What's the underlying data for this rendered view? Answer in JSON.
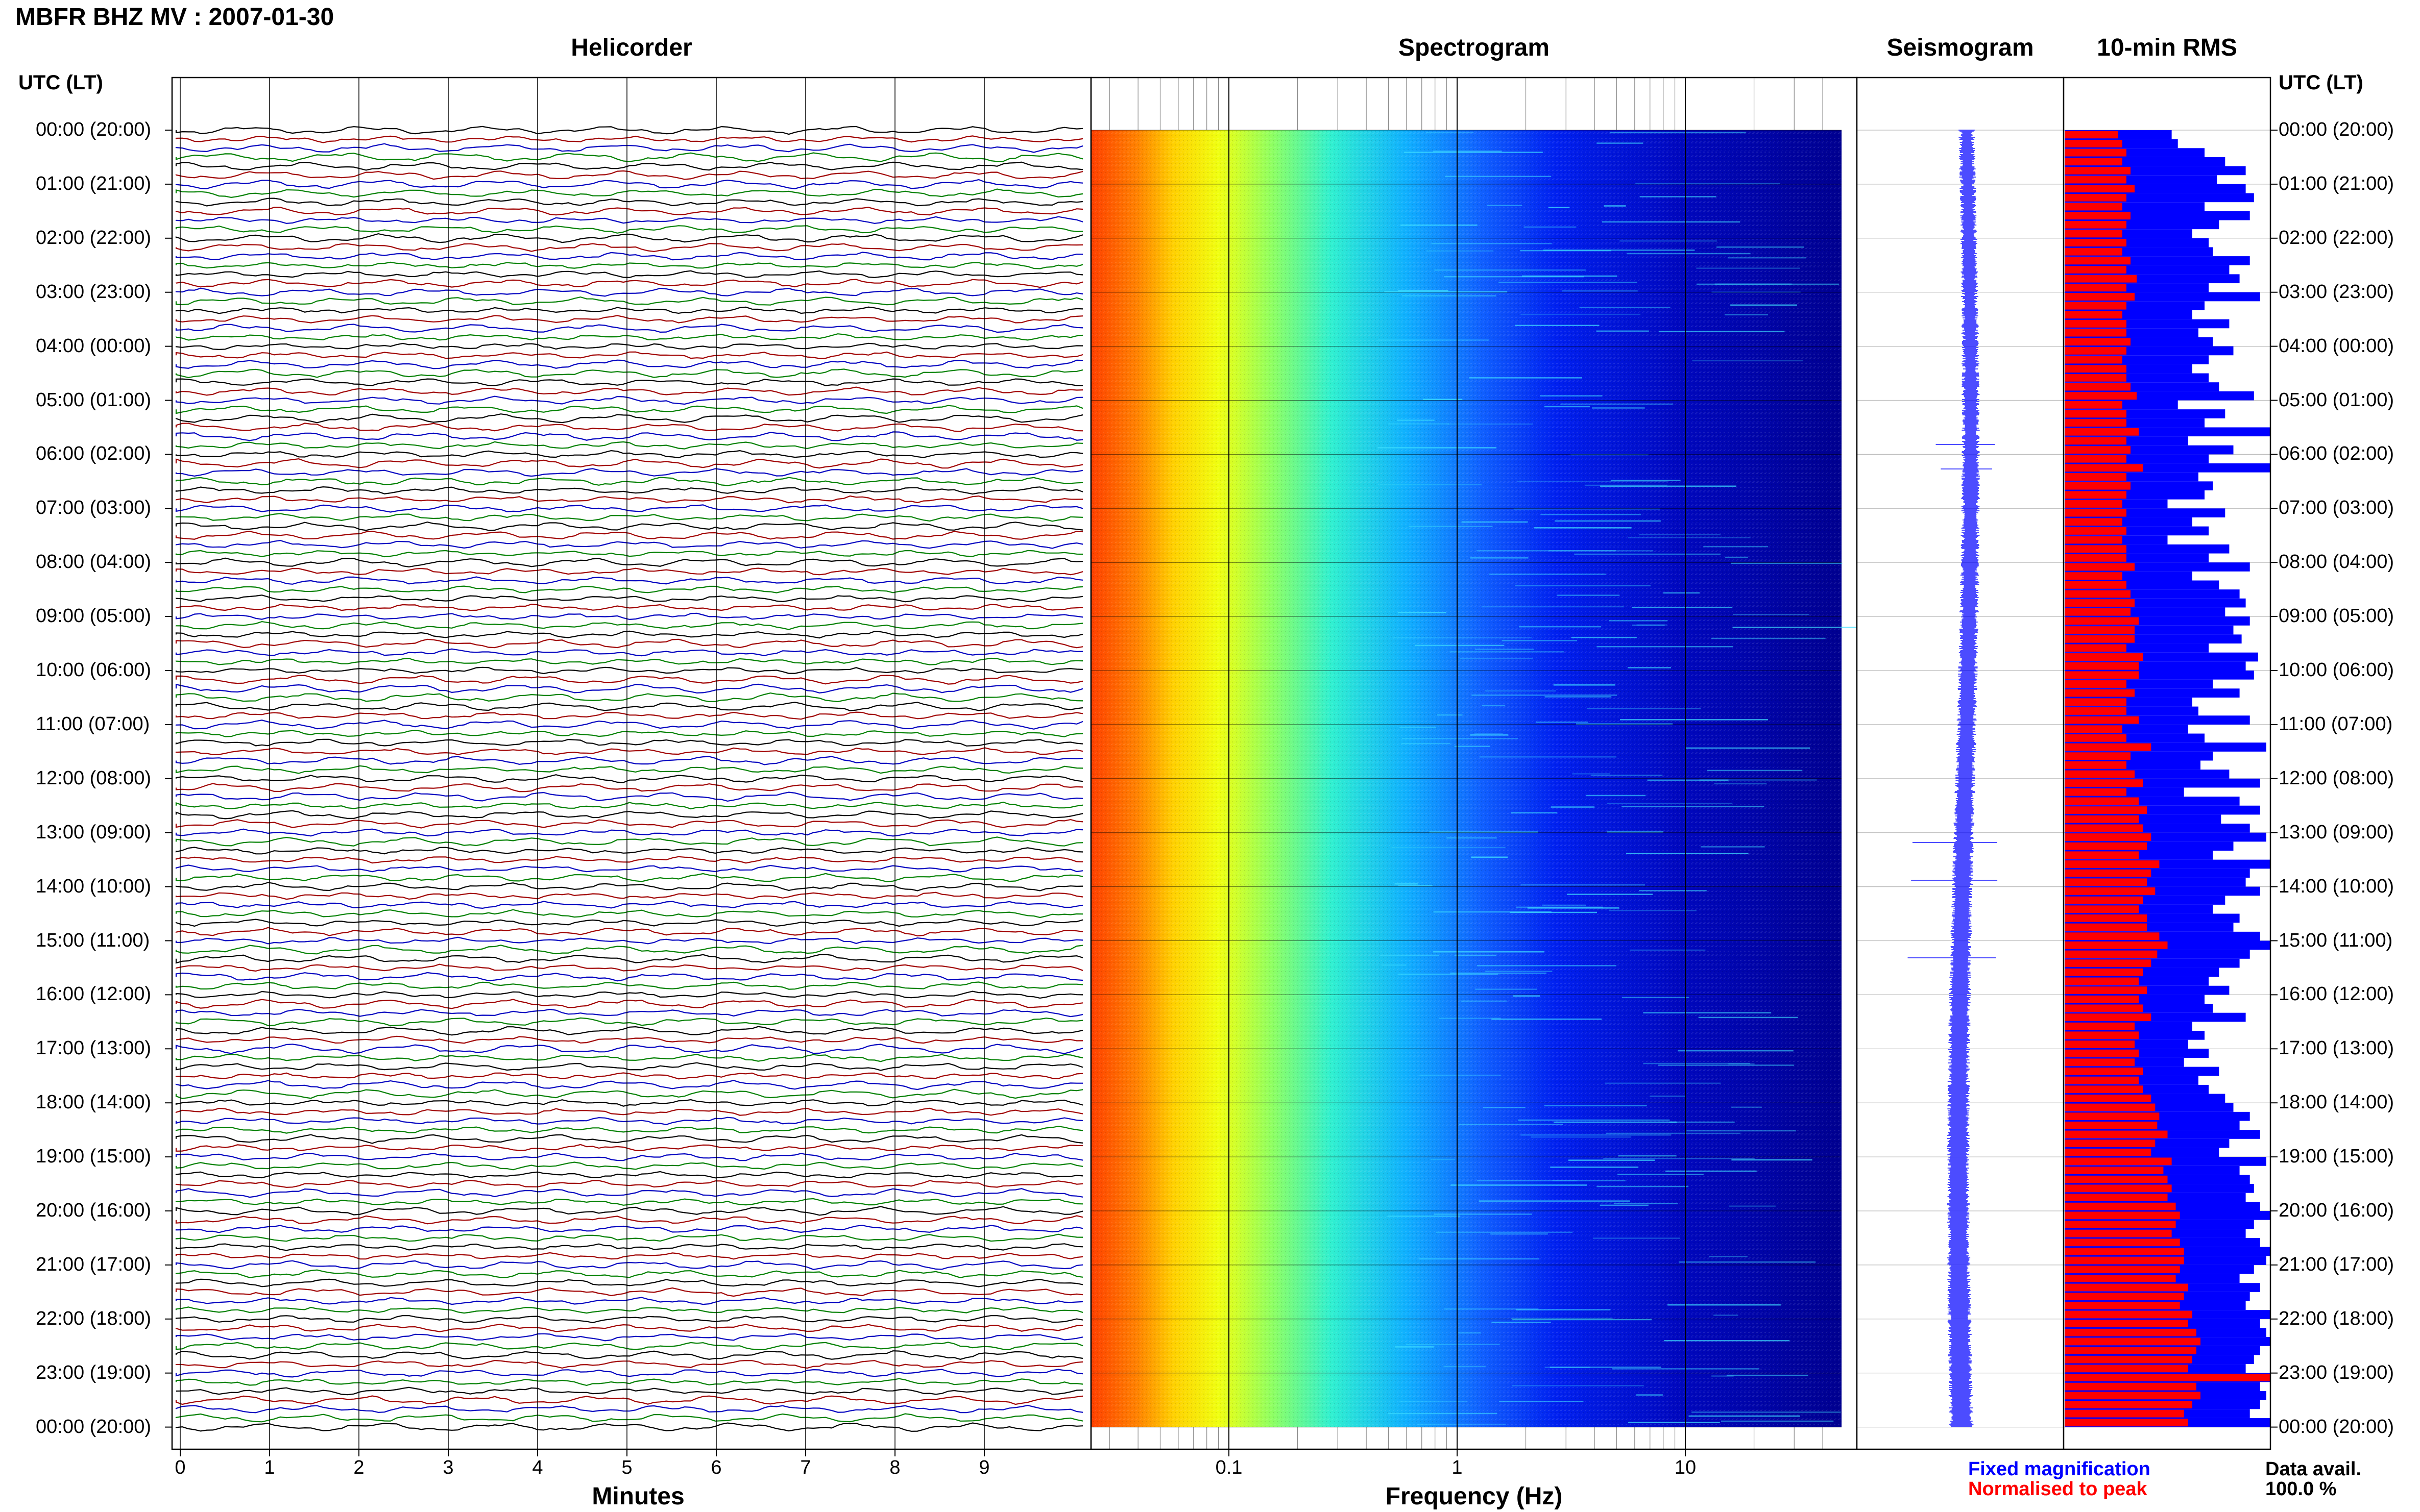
{
  "title": "MBFR BHZ MV : 2007-01-30",
  "panels": {
    "helicorder": "Helicorder",
    "spectrogram": "Spectrogram",
    "seismogram": "Seismogram",
    "rms": "10-min RMS"
  },
  "time_axis": {
    "header": "UTC (LT)",
    "labels": [
      "00:00 (20:00)",
      "01:00 (21:00)",
      "02:00 (22:00)",
      "03:00 (23:00)",
      "04:00 (00:00)",
      "05:00 (01:00)",
      "06:00 (02:00)",
      "07:00 (03:00)",
      "08:00 (04:00)",
      "09:00 (05:00)",
      "10:00 (06:00)",
      "11:00 (07:00)",
      "12:00 (08:00)",
      "13:00 (09:00)",
      "14:00 (10:00)",
      "15:00 (11:00)",
      "16:00 (12:00)",
      "17:00 (13:00)",
      "18:00 (14:00)",
      "19:00 (15:00)",
      "20:00 (16:00)",
      "21:00 (17:00)",
      "22:00 (18:00)",
      "23:00 (19:00)",
      "00:00 (20:00)"
    ]
  },
  "helicorder_axis": {
    "xlabel": "Minutes",
    "ticks": [
      "0",
      "1",
      "2",
      "3",
      "4",
      "5",
      "6",
      "7",
      "8",
      "9"
    ],
    "trace_colors": [
      "#000000",
      "#a00000",
      "#0000c0",
      "#008000"
    ]
  },
  "spectrogram_axis": {
    "xlabel": "Frequency (Hz)",
    "ticks": [
      "0.1",
      "1",
      "10"
    ],
    "scale": "log"
  },
  "rms_legend": {
    "fixed": "Fixed magnification",
    "fixed_color": "#0000ff",
    "normalised": "Normalised to peak",
    "normalised_color": "#ff0000"
  },
  "data_avail": {
    "label": "Data avail.",
    "value": "100.0 %"
  },
  "chart_data": {
    "type": "heatmap",
    "rms_10min": {
      "series": [
        {
          "name": "Fixed magnification",
          "values": [
            0.52,
            0.55,
            0.68,
            0.78,
            0.88,
            0.74,
            0.88,
            0.92,
            0.68,
            0.9,
            0.75,
            0.62,
            0.7,
            0.72,
            0.9,
            0.8,
            0.85,
            0.7,
            0.95,
            0.68,
            0.62,
            0.8,
            0.65,
            0.72,
            0.82,
            0.7,
            0.62,
            0.7,
            0.75,
            0.92,
            0.55,
            0.78,
            0.68,
            1.0,
            0.6,
            0.82,
            0.7,
            1.0,
            0.65,
            0.72,
            0.68,
            0.5,
            0.78,
            0.62,
            0.7,
            0.5,
            0.8,
            0.7,
            0.9,
            0.62,
            0.75,
            0.85,
            0.88,
            0.78,
            0.9,
            0.82,
            0.86,
            0.7,
            0.94,
            0.88,
            0.92,
            0.72,
            0.85,
            0.62,
            0.65,
            0.9,
            0.6,
            0.68,
            0.98,
            0.72,
            0.66,
            0.8,
            0.95,
            0.58,
            0.85,
            0.95,
            0.76,
            0.9,
            0.98,
            0.82,
            0.72,
            1.0,
            0.9,
            0.88,
            0.95,
            0.78,
            0.72,
            0.85,
            0.82,
            0.95,
            1.0,
            0.9,
            0.85,
            0.75,
            0.7,
            0.8,
            0.68,
            0.72,
            0.88,
            0.62,
            0.68,
            0.6,
            0.7,
            0.58,
            0.75,
            0.65,
            0.7,
            0.78,
            0.82,
            0.9,
            0.85,
            0.95,
            0.8,
            0.75,
            0.98,
            0.85,
            0.9,
            0.92,
            0.88,
            0.95,
            1.0,
            0.92,
            0.88,
            0.95,
            1.0,
            0.98,
            0.92,
            0.85,
            0.95,
            0.9,
            0.88,
            1.0,
            0.95,
            0.98,
            1.0,
            0.95,
            0.92,
            0.88,
            1.0,
            0.95,
            0.98,
            0.95,
            0.9,
            1.0
          ]
        },
        {
          "name": "Normalised to peak",
          "values": [
            0.26,
            0.28,
            0.3,
            0.28,
            0.32,
            0.3,
            0.34,
            0.3,
            0.28,
            0.32,
            0.3,
            0.28,
            0.3,
            0.28,
            0.32,
            0.3,
            0.35,
            0.3,
            0.34,
            0.3,
            0.28,
            0.3,
            0.3,
            0.32,
            0.3,
            0.28,
            0.3,
            0.3,
            0.32,
            0.35,
            0.28,
            0.3,
            0.3,
            0.36,
            0.3,
            0.32,
            0.3,
            0.38,
            0.3,
            0.32,
            0.3,
            0.28,
            0.3,
            0.28,
            0.3,
            0.28,
            0.3,
            0.3,
            0.34,
            0.28,
            0.3,
            0.32,
            0.34,
            0.32,
            0.36,
            0.34,
            0.34,
            0.3,
            0.38,
            0.36,
            0.36,
            0.3,
            0.34,
            0.3,
            0.3,
            0.36,
            0.28,
            0.3,
            0.42,
            0.32,
            0.3,
            0.34,
            0.38,
            0.3,
            0.36,
            0.4,
            0.36,
            0.38,
            0.42,
            0.4,
            0.36,
            0.46,
            0.42,
            0.4,
            0.44,
            0.38,
            0.36,
            0.4,
            0.4,
            0.46,
            0.5,
            0.45,
            0.42,
            0.38,
            0.36,
            0.4,
            0.36,
            0.38,
            0.42,
            0.34,
            0.36,
            0.34,
            0.36,
            0.34,
            0.38,
            0.36,
            0.38,
            0.42,
            0.44,
            0.46,
            0.45,
            0.5,
            0.44,
            0.42,
            0.52,
            0.48,
            0.5,
            0.52,
            0.5,
            0.54,
            0.56,
            0.54,
            0.52,
            0.56,
            0.58,
            0.58,
            0.56,
            0.54,
            0.6,
            0.58,
            0.56,
            0.62,
            0.6,
            0.64,
            0.66,
            0.64,
            0.62,
            0.6,
            1.0,
            0.64,
            0.66,
            0.62,
            0.58,
            0.6
          ]
        }
      ]
    }
  }
}
